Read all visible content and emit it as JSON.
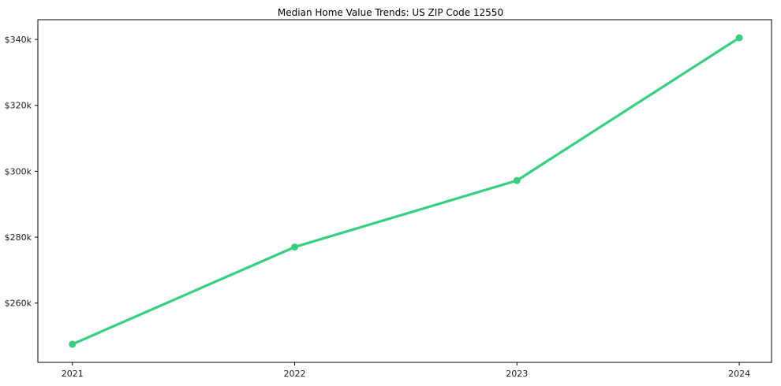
{
  "chart_data": {
    "type": "line",
    "title": "Median Home Value Trends: US ZIP Code 12550",
    "categories": [
      "2021",
      "2022",
      "2023",
      "2024"
    ],
    "series": [
      {
        "name": "Median Home Value",
        "values": [
          247500,
          277000,
          297200,
          340500
        ]
      }
    ],
    "y_ticks": [
      {
        "value": 260000,
        "label": "$260k"
      },
      {
        "value": 280000,
        "label": "$280k"
      },
      {
        "value": 300000,
        "label": "$300k"
      },
      {
        "value": 320000,
        "label": "$320k"
      },
      {
        "value": 340000,
        "label": "$340k"
      }
    ],
    "xlabel": "",
    "ylabel": "",
    "ylim": [
      242000,
      346000
    ],
    "grid": false,
    "legend": false,
    "line_color": "#35d07f",
    "marker_color": "#35d07f",
    "spine_color": "#000000",
    "tick_label_color": "#1a1a1a"
  }
}
